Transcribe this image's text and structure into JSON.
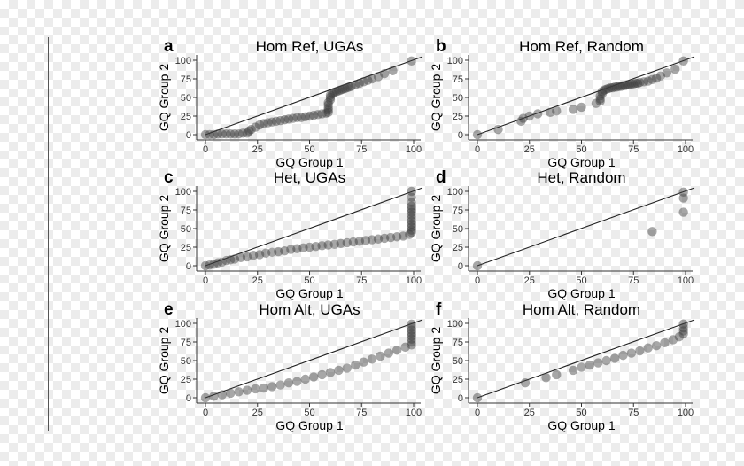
{
  "figure": {
    "x_axis_title": "GQ Group 1",
    "y_axis_title": "GQ Group 2"
  },
  "chart_data": [
    {
      "type": "scatter",
      "label": "a",
      "title": "Hom Ref, UGAs",
      "xlabel": "GQ Group 1",
      "ylabel": "GQ Group 2",
      "xlim": [
        0,
        100
      ],
      "ylim": [
        0,
        100
      ],
      "xticks": [
        0,
        25,
        50,
        75,
        100
      ],
      "yticks": [
        0,
        25,
        50,
        75,
        100
      ],
      "show_xlabel": true,
      "reference_line": "y = x",
      "grid": false,
      "x": [
        0,
        2,
        4,
        6,
        8,
        10,
        12,
        14,
        16,
        18,
        20,
        21,
        22,
        24,
        26,
        28,
        30,
        32,
        34,
        36,
        38,
        40,
        42,
        44,
        46,
        48,
        50,
        52,
        54,
        56,
        58,
        59,
        59,
        59,
        59,
        59,
        60,
        60,
        60,
        61,
        62,
        63,
        64,
        65,
        66,
        67,
        68,
        69,
        70,
        72,
        74,
        76,
        78,
        80,
        83,
        86,
        90,
        99
      ],
      "y": [
        0,
        0,
        0,
        1,
        1,
        1,
        1,
        1,
        1,
        2,
        2,
        5,
        7,
        10,
        13,
        15,
        16,
        17,
        18,
        19,
        20,
        21,
        22,
        23,
        23,
        24,
        25,
        26,
        27,
        28,
        29,
        30,
        33,
        36,
        40,
        43,
        47,
        50,
        53,
        55,
        57,
        58,
        59,
        60,
        61,
        62,
        63,
        64,
        65,
        67,
        69,
        71,
        73,
        75,
        78,
        82,
        86,
        99
      ]
    },
    {
      "type": "scatter",
      "label": "b",
      "title": "Hom Ref, Random",
      "xlabel": "GQ Group 1",
      "ylabel": "GQ Group 2",
      "xlim": [
        0,
        100
      ],
      "ylim": [
        0,
        100
      ],
      "xticks": [
        0,
        25,
        50,
        75,
        100
      ],
      "yticks": [
        0,
        25,
        50,
        75,
        100
      ],
      "show_xlabel": true,
      "reference_line": "y = x",
      "grid": false,
      "x": [
        0,
        10,
        21,
        22,
        25,
        29,
        35,
        38,
        46,
        50,
        57,
        59,
        59,
        59,
        60,
        60,
        61,
        62,
        63,
        64,
        65,
        66,
        67,
        68,
        69,
        70,
        71,
        72,
        73,
        74,
        75,
        76,
        77,
        78,
        80,
        82,
        84,
        86,
        88,
        91,
        95,
        99
      ],
      "y": [
        0,
        7,
        18,
        22,
        25,
        28,
        30,
        32,
        34,
        37,
        42,
        45,
        48,
        52,
        55,
        58,
        60,
        61,
        62,
        63,
        63,
        64,
        64,
        65,
        65,
        66,
        66,
        67,
        67,
        68,
        68,
        69,
        69,
        70,
        71,
        72,
        74,
        76,
        79,
        83,
        88,
        99
      ]
    },
    {
      "type": "scatter",
      "label": "c",
      "title": "Het, UGAs",
      "xlabel": "GQ Group 1",
      "ylabel": "GQ Group 2",
      "xlim": [
        0,
        100
      ],
      "ylim": [
        0,
        100
      ],
      "xticks": [
        0,
        25,
        50,
        75,
        100
      ],
      "yticks": [
        0,
        25,
        50,
        75,
        100
      ],
      "show_xlabel": true,
      "reference_line": "y = x",
      "grid": false,
      "x": [
        0,
        2,
        4,
        6,
        8,
        10,
        12,
        14,
        17,
        20,
        23,
        26,
        29,
        32,
        35,
        38,
        41,
        44,
        47,
        50,
        53,
        56,
        59,
        62,
        65,
        68,
        71,
        74,
        77,
        80,
        83,
        86,
        89,
        92,
        95,
        98,
        99,
        99,
        99,
        99,
        99,
        99,
        99,
        99,
        99,
        99,
        99,
        99,
        99
      ],
      "y": [
        0,
        1,
        2,
        4,
        5,
        7,
        8,
        9,
        11,
        12,
        14,
        15,
        17,
        18,
        19,
        20,
        22,
        23,
        24,
        25,
        26,
        27,
        28,
        29,
        30,
        31,
        32,
        33,
        34,
        35,
        36,
        37,
        38,
        39,
        40,
        42,
        45,
        48,
        52,
        56,
        60,
        64,
        68,
        72,
        76,
        80,
        85,
        92,
        100
      ]
    },
    {
      "type": "scatter",
      "label": "d",
      "title": "Het, Random",
      "xlabel": "GQ Group 1",
      "ylabel": "GQ Group 2",
      "xlim": [
        0,
        100
      ],
      "ylim": [
        0,
        100
      ],
      "xticks": [
        0,
        25,
        50,
        75,
        100
      ],
      "yticks": [
        0,
        25,
        50,
        75,
        100
      ],
      "show_xlabel": true,
      "reference_line": "y = x",
      "grid": false,
      "x": [
        0,
        84,
        99,
        99,
        99
      ],
      "y": [
        0,
        46,
        72,
        91,
        99
      ]
    },
    {
      "type": "scatter",
      "label": "e",
      "title": "Hom Alt, UGAs",
      "xlabel": "GQ Group 1",
      "ylabel": "GQ Group 2",
      "xlim": [
        0,
        100
      ],
      "ylim": [
        0,
        100
      ],
      "xticks": [
        0,
        25,
        50,
        75,
        100
      ],
      "yticks": [
        0,
        25,
        50,
        75,
        100
      ],
      "show_xlabel": true,
      "reference_line": "y = x",
      "grid": false,
      "x": [
        0,
        4,
        8,
        12,
        16,
        20,
        24,
        28,
        32,
        36,
        40,
        44,
        48,
        52,
        56,
        60,
        64,
        68,
        72,
        76,
        80,
        84,
        88,
        92,
        96,
        99,
        99,
        99,
        99,
        99,
        99,
        99,
        99
      ],
      "y": [
        0,
        2,
        4,
        6,
        8,
        10,
        12,
        13,
        15,
        17,
        20,
        22,
        25,
        28,
        31,
        34,
        37,
        40,
        44,
        48,
        52,
        56,
        60,
        64,
        68,
        71,
        75,
        79,
        83,
        87,
        91,
        95,
        99
      ]
    },
    {
      "type": "scatter",
      "label": "f",
      "title": "Hom Alt, Random",
      "xlabel": "GQ Group 1",
      "ylabel": "GQ Group 2",
      "xlim": [
        0,
        100
      ],
      "ylim": [
        0,
        100
      ],
      "xticks": [
        0,
        25,
        50,
        75,
        100
      ],
      "yticks": [
        0,
        25,
        50,
        75,
        100
      ],
      "show_xlabel": true,
      "reference_line": "y = x",
      "grid": false,
      "x": [
        0,
        23,
        33,
        38,
        46,
        50,
        54,
        58,
        62,
        66,
        70,
        74,
        78,
        82,
        86,
        90,
        94,
        97,
        99,
        99,
        99,
        99
      ],
      "y": [
        0,
        20,
        27,
        31,
        37,
        41,
        44,
        47,
        50,
        53,
        57,
        60,
        63,
        67,
        70,
        74,
        78,
        82,
        86,
        90,
        94,
        99
      ]
    }
  ]
}
